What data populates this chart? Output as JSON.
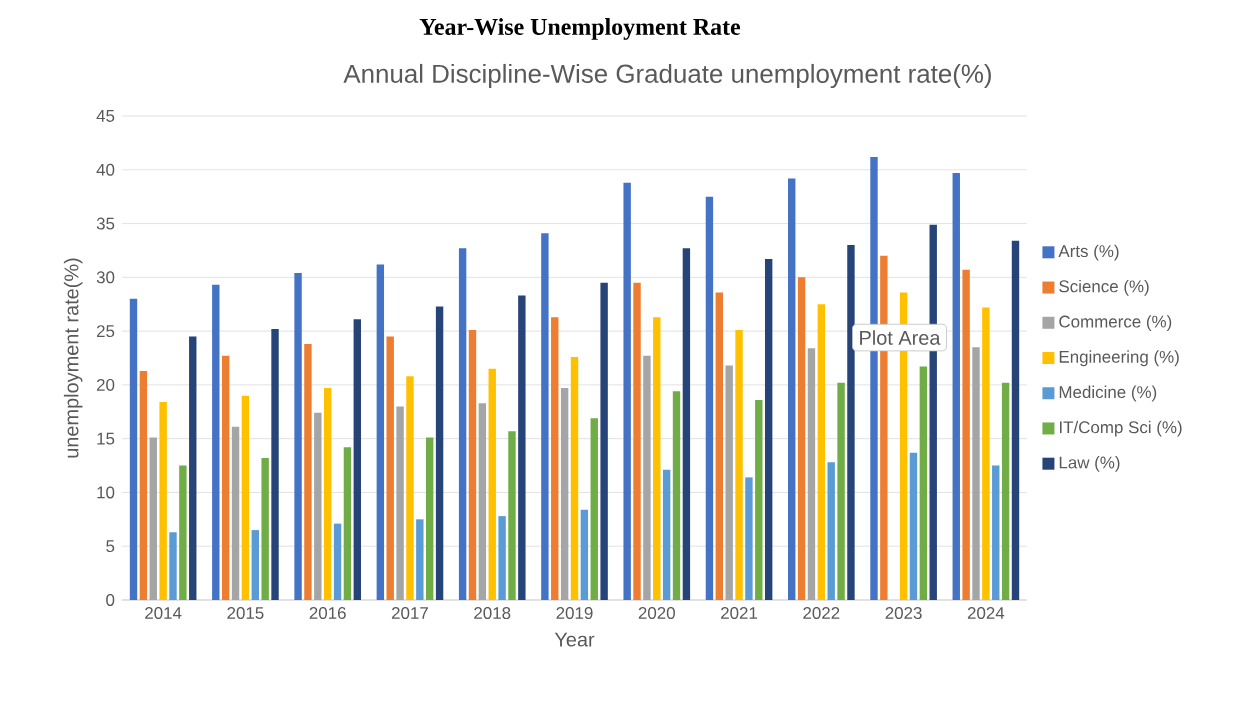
{
  "chart_data": {
    "type": "bar",
    "title": "Year-Wise Unemployment Rate",
    "subtitle": "Annual Discipline-Wise Graduate unemployment rate(%)",
    "xlabel": "Year",
    "ylabel": "unemployment rate(%)",
    "categories": [
      "2014",
      "2015",
      "2016",
      "2017",
      "2018",
      "2019",
      "2020",
      "2021",
      "2022",
      "2023",
      "2024"
    ],
    "series": [
      {
        "name": "Arts (%)",
        "color": "#4472c4",
        "values": [
          28.0,
          29.3,
          30.4,
          31.2,
          32.7,
          34.1,
          38.8,
          37.5,
          39.2,
          41.2,
          39.7
        ]
      },
      {
        "name": "Science (%)",
        "color": "#ed7d31",
        "values": [
          21.3,
          22.7,
          23.8,
          24.5,
          25.1,
          26.3,
          29.5,
          28.6,
          30.0,
          32.0,
          30.7
        ]
      },
      {
        "name": "Commerce (%)",
        "color": "#a5a5a5",
        "values": [
          15.1,
          16.1,
          17.4,
          18.0,
          18.3,
          19.7,
          22.7,
          21.8,
          23.4,
          null,
          23.5
        ]
      },
      {
        "name": "Engineering (%)",
        "color": "#ffc000",
        "values": [
          18.4,
          19.0,
          19.7,
          20.8,
          21.5,
          22.6,
          26.3,
          25.1,
          27.5,
          28.6,
          27.2
        ]
      },
      {
        "name": "Medicine (%)",
        "color": "#5b9bd5",
        "values": [
          6.3,
          6.5,
          7.1,
          7.5,
          7.8,
          8.4,
          12.1,
          11.4,
          12.8,
          13.7,
          12.5
        ]
      },
      {
        "name": "IT/Comp Sci (%)",
        "color": "#70ad47",
        "values": [
          12.5,
          13.2,
          14.2,
          15.1,
          15.7,
          16.9,
          19.4,
          18.6,
          20.2,
          21.7,
          20.2
        ]
      },
      {
        "name": "Law (%)",
        "color": "#264478",
        "values": [
          24.5,
          25.2,
          26.1,
          27.3,
          28.3,
          29.5,
          32.7,
          31.7,
          33.0,
          34.9,
          33.4
        ]
      }
    ],
    "ylim": [
      0,
      45
    ],
    "yticks": [
      0,
      5,
      10,
      15,
      20,
      25,
      30,
      35,
      40,
      45
    ],
    "grid": "y",
    "legend": "right",
    "annotations": [
      "Plot Area"
    ]
  }
}
